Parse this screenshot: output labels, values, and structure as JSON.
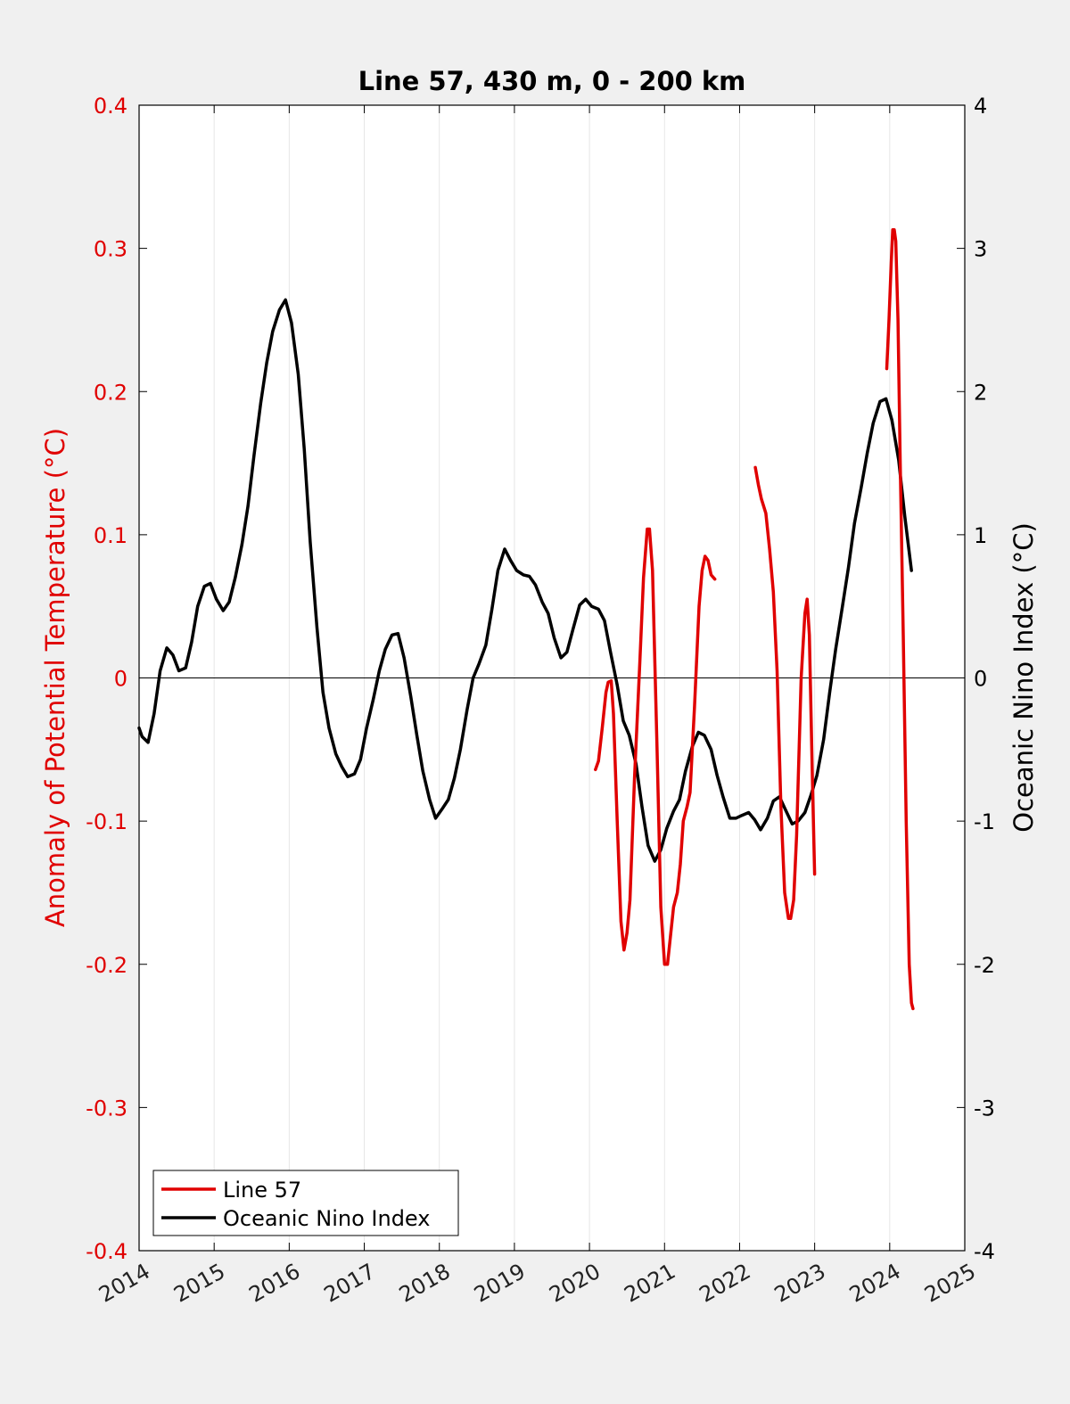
{
  "chart_data": {
    "type": "line",
    "title": "Line 57, 430 m, 0 - 200 km",
    "xlabel": "",
    "ylabel_left": "Anomaly of Potential Temperature (°C)",
    "ylabel_right": "Oceanic Nino Index (°C)",
    "xlim": [
      2014,
      2025
    ],
    "ylim_left": [
      -0.4,
      0.4
    ],
    "ylim_right": [
      -4,
      4
    ],
    "x_ticks": [
      "2014",
      "2015",
      "2016",
      "2017",
      "2018",
      "2019",
      "2020",
      "2021",
      "2022",
      "2023",
      "2024",
      "2025"
    ],
    "y_left_ticks": [
      "-0.4",
      "-0.3",
      "-0.2",
      "-0.1",
      "0",
      "0.1",
      "0.2",
      "0.3",
      "0.4"
    ],
    "y_right_ticks": [
      "-4",
      "-3",
      "-2",
      "-1",
      "0",
      "1",
      "2",
      "3",
      "4"
    ],
    "grid": "vertical",
    "zero_line": true,
    "legend_position": "bottom-left",
    "colors": {
      "line57": "#e00000",
      "oni": "#000000",
      "grid": "#e6e6e6"
    },
    "series": [
      {
        "name": "Line 57",
        "axis": "left",
        "color": "#e00000",
        "segments": [
          [
            [
              2020.08,
              -0.064
            ],
            [
              2020.12,
              -0.058
            ],
            [
              2020.17,
              -0.035
            ],
            [
              2020.22,
              -0.01
            ],
            [
              2020.25,
              -0.003
            ],
            [
              2020.29,
              -0.002
            ],
            [
              2020.32,
              -0.025
            ],
            [
              2020.37,
              -0.1
            ],
            [
              2020.42,
              -0.17
            ],
            [
              2020.46,
              -0.19
            ],
            [
              2020.5,
              -0.178
            ],
            [
              2020.54,
              -0.155
            ],
            [
              2020.6,
              -0.07
            ],
            [
              2020.67,
              0.01
            ],
            [
              2020.72,
              0.07
            ],
            [
              2020.77,
              0.104
            ],
            [
              2020.8,
              0.104
            ],
            [
              2020.84,
              0.075
            ],
            [
              2020.9,
              -0.05
            ],
            [
              2020.95,
              -0.16
            ],
            [
              2021.0,
              -0.2
            ],
            [
              2021.04,
              -0.2
            ],
            [
              2021.08,
              -0.18
            ],
            [
              2021.12,
              -0.16
            ],
            [
              2021.17,
              -0.15
            ],
            [
              2021.21,
              -0.13
            ],
            [
              2021.25,
              -0.1
            ],
            [
              2021.3,
              -0.09
            ],
            [
              2021.34,
              -0.08
            ],
            [
              2021.4,
              -0.02
            ],
            [
              2021.46,
              0.05
            ],
            [
              2021.5,
              0.075
            ],
            [
              2021.54,
              0.085
            ],
            [
              2021.58,
              0.082
            ],
            [
              2021.62,
              0.072
            ],
            [
              2021.67,
              0.069
            ]
          ],
          [
            [
              2022.21,
              0.147
            ],
            [
              2022.25,
              0.135
            ],
            [
              2022.29,
              0.125
            ],
            [
              2022.35,
              0.115
            ],
            [
              2022.4,
              0.09
            ],
            [
              2022.45,
              0.06
            ],
            [
              2022.5,
              0.005
            ],
            [
              2022.55,
              -0.09
            ],
            [
              2022.6,
              -0.15
            ],
            [
              2022.65,
              -0.168
            ],
            [
              2022.68,
              -0.168
            ],
            [
              2022.72,
              -0.155
            ],
            [
              2022.76,
              -0.11
            ],
            [
              2022.82,
              0.0
            ],
            [
              2022.87,
              0.045
            ],
            [
              2022.9,
              0.055
            ],
            [
              2022.93,
              0.03
            ],
            [
              2022.97,
              -0.07
            ],
            [
              2023.0,
              -0.137
            ]
          ],
          [
            [
              2023.96,
              0.216
            ],
            [
              2023.99,
              0.25
            ],
            [
              2024.02,
              0.29
            ],
            [
              2024.04,
              0.313
            ],
            [
              2024.06,
              0.313
            ],
            [
              2024.08,
              0.305
            ],
            [
              2024.11,
              0.25
            ],
            [
              2024.14,
              0.15
            ],
            [
              2024.18,
              0.03
            ],
            [
              2024.22,
              -0.1
            ],
            [
              2024.26,
              -0.2
            ],
            [
              2024.29,
              -0.227
            ],
            [
              2024.31,
              -0.231
            ]
          ]
        ]
      },
      {
        "name": "Oceanic Nino Index",
        "axis": "right",
        "color": "#000000",
        "values": [
          [
            2014.0,
            -0.35
          ],
          [
            2014.04,
            -0.41
          ],
          [
            2014.12,
            -0.45
          ],
          [
            2014.2,
            -0.25
          ],
          [
            2014.28,
            0.05
          ],
          [
            2014.37,
            0.21
          ],
          [
            2014.45,
            0.16
          ],
          [
            2014.53,
            0.05
          ],
          [
            2014.62,
            0.07
          ],
          [
            2014.7,
            0.25
          ],
          [
            2014.78,
            0.5
          ],
          [
            2014.87,
            0.64
          ],
          [
            2014.95,
            0.66
          ],
          [
            2015.03,
            0.55
          ],
          [
            2015.12,
            0.47
          ],
          [
            2015.2,
            0.53
          ],
          [
            2015.28,
            0.7
          ],
          [
            2015.37,
            0.93
          ],
          [
            2015.45,
            1.2
          ],
          [
            2015.53,
            1.55
          ],
          [
            2015.62,
            1.92
          ],
          [
            2015.7,
            2.2
          ],
          [
            2015.78,
            2.42
          ],
          [
            2015.87,
            2.57
          ],
          [
            2015.95,
            2.64
          ],
          [
            2016.03,
            2.48
          ],
          [
            2016.12,
            2.12
          ],
          [
            2016.2,
            1.6
          ],
          [
            2016.28,
            0.95
          ],
          [
            2016.37,
            0.35
          ],
          [
            2016.45,
            -0.1
          ],
          [
            2016.53,
            -0.35
          ],
          [
            2016.62,
            -0.53
          ],
          [
            2016.7,
            -0.62
          ],
          [
            2016.78,
            -0.69
          ],
          [
            2016.87,
            -0.67
          ],
          [
            2016.95,
            -0.57
          ],
          [
            2017.03,
            -0.35
          ],
          [
            2017.12,
            -0.15
          ],
          [
            2017.2,
            0.05
          ],
          [
            2017.28,
            0.2
          ],
          [
            2017.37,
            0.3
          ],
          [
            2017.45,
            0.31
          ],
          [
            2017.53,
            0.14
          ],
          [
            2017.62,
            -0.13
          ],
          [
            2017.7,
            -0.4
          ],
          [
            2017.78,
            -0.65
          ],
          [
            2017.87,
            -0.85
          ],
          [
            2017.95,
            -0.98
          ],
          [
            2018.03,
            -0.92
          ],
          [
            2018.12,
            -0.85
          ],
          [
            2018.2,
            -0.7
          ],
          [
            2018.28,
            -0.5
          ],
          [
            2018.37,
            -0.22
          ],
          [
            2018.45,
            0.0
          ],
          [
            2018.53,
            0.1
          ],
          [
            2018.62,
            0.23
          ],
          [
            2018.7,
            0.48
          ],
          [
            2018.78,
            0.75
          ],
          [
            2018.87,
            0.9
          ],
          [
            2018.95,
            0.82
          ],
          [
            2019.03,
            0.75
          ],
          [
            2019.12,
            0.72
          ],
          [
            2019.2,
            0.71
          ],
          [
            2019.28,
            0.65
          ],
          [
            2019.37,
            0.53
          ],
          [
            2019.45,
            0.45
          ],
          [
            2019.53,
            0.28
          ],
          [
            2019.62,
            0.14
          ],
          [
            2019.7,
            0.18
          ],
          [
            2019.78,
            0.34
          ],
          [
            2019.87,
            0.51
          ],
          [
            2019.95,
            0.55
          ],
          [
            2020.03,
            0.5
          ],
          [
            2020.12,
            0.48
          ],
          [
            2020.2,
            0.4
          ],
          [
            2020.28,
            0.18
          ],
          [
            2020.37,
            -0.05
          ],
          [
            2020.45,
            -0.3
          ],
          [
            2020.53,
            -0.4
          ],
          [
            2020.62,
            -0.6
          ],
          [
            2020.7,
            -0.9
          ],
          [
            2020.78,
            -1.17
          ],
          [
            2020.87,
            -1.28
          ],
          [
            2020.95,
            -1.2
          ],
          [
            2021.03,
            -1.05
          ],
          [
            2021.12,
            -0.93
          ],
          [
            2021.2,
            -0.85
          ],
          [
            2021.28,
            -0.65
          ],
          [
            2021.37,
            -0.48
          ],
          [
            2021.45,
            -0.38
          ],
          [
            2021.53,
            -0.4
          ],
          [
            2021.62,
            -0.5
          ],
          [
            2021.7,
            -0.68
          ],
          [
            2021.78,
            -0.83
          ],
          [
            2021.87,
            -0.98
          ],
          [
            2021.95,
            -0.98
          ],
          [
            2022.03,
            -0.96
          ],
          [
            2022.12,
            -0.94
          ],
          [
            2022.2,
            -0.99
          ],
          [
            2022.28,
            -1.06
          ],
          [
            2022.37,
            -0.98
          ],
          [
            2022.45,
            -0.86
          ],
          [
            2022.53,
            -0.83
          ],
          [
            2022.62,
            -0.93
          ],
          [
            2022.7,
            -1.02
          ],
          [
            2022.78,
            -1.0
          ],
          [
            2022.87,
            -0.94
          ],
          [
            2022.95,
            -0.82
          ],
          [
            2023.03,
            -0.68
          ],
          [
            2023.12,
            -0.43
          ],
          [
            2023.2,
            -0.1
          ],
          [
            2023.28,
            0.2
          ],
          [
            2023.37,
            0.5
          ],
          [
            2023.45,
            0.77
          ],
          [
            2023.53,
            1.08
          ],
          [
            2023.62,
            1.33
          ],
          [
            2023.7,
            1.57
          ],
          [
            2023.78,
            1.78
          ],
          [
            2023.87,
            1.93
          ],
          [
            2023.95,
            1.95
          ],
          [
            2024.03,
            1.8
          ],
          [
            2024.12,
            1.52
          ],
          [
            2024.2,
            1.13
          ],
          [
            2024.29,
            0.75
          ]
        ]
      }
    ]
  }
}
